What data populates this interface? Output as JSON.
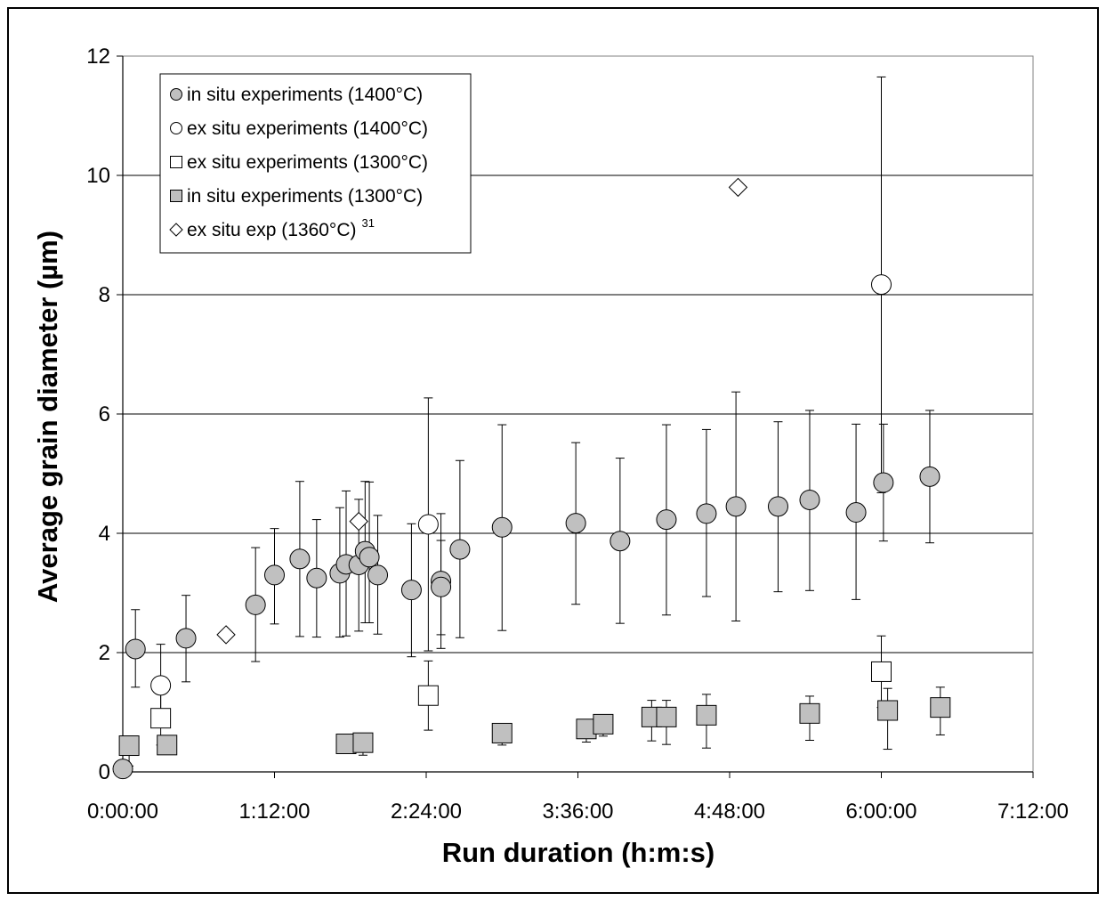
{
  "chart_data": {
    "type": "scatter",
    "xlabel": "Run duration (h:m:s)",
    "ylabel": "Average grain diameter (µm)",
    "x_unit": "minutes",
    "xlim": [
      0,
      432
    ],
    "ylim": [
      0,
      12
    ],
    "x_ticks": [
      {
        "value": 0,
        "label": "0:00:00"
      },
      {
        "value": 72,
        "label": "1:12:00"
      },
      {
        "value": 144,
        "label": "2:24:00"
      },
      {
        "value": 216,
        "label": "3:36:00"
      },
      {
        "value": 288,
        "label": "4:48:00"
      },
      {
        "value": 360,
        "label": "6:00:00"
      },
      {
        "value": 432,
        "label": "7:12:00"
      }
    ],
    "y_ticks": [
      {
        "value": 0,
        "label": "0"
      },
      {
        "value": 2,
        "label": "2"
      },
      {
        "value": 4,
        "label": "4"
      },
      {
        "value": 6,
        "label": "6"
      },
      {
        "value": 8,
        "label": "8"
      },
      {
        "value": 10,
        "label": "10"
      },
      {
        "value": 12,
        "label": "12"
      }
    ],
    "grid": "horizontal major lines",
    "legend_position": "top-left",
    "series": [
      {
        "name": "in situ experiments (1400°C)",
        "marker": "circle",
        "fill": "#c0c0c0",
        "points": [
          {
            "x": 0,
            "y": 0.05
          },
          {
            "x": 6,
            "y": 2.06,
            "err_hi": 2.72,
            "err_lo": 1.42
          },
          {
            "x": 30,
            "y": 2.24,
            "err_hi": 2.96,
            "err_lo": 1.51
          },
          {
            "x": 63,
            "y": 2.8,
            "err_hi": 3.76,
            "err_lo": 1.85
          },
          {
            "x": 72,
            "y": 3.3,
            "err_hi": 4.08,
            "err_lo": 2.48
          },
          {
            "x": 84,
            "y": 3.57,
            "err_hi": 4.87,
            "err_lo": 2.27
          },
          {
            "x": 92,
            "y": 3.25,
            "err_hi": 4.23,
            "err_lo": 2.26
          },
          {
            "x": 103,
            "y": 3.33,
            "err_hi": 4.43,
            "err_lo": 2.26
          },
          {
            "x": 106,
            "y": 3.48,
            "err_hi": 4.71,
            "err_lo": 2.28
          },
          {
            "x": 112,
            "y": 3.47,
            "err_hi": 4.57,
            "err_lo": 2.36
          },
          {
            "x": 115,
            "y": 3.7,
            "err_hi": 4.87,
            "err_lo": 2.5
          },
          {
            "x": 117,
            "y": 3.6,
            "err_hi": 4.86,
            "err_lo": 2.5
          },
          {
            "x": 121,
            "y": 3.3,
            "err_hi": 4.3,
            "err_lo": 2.31
          },
          {
            "x": 137,
            "y": 3.05,
            "err_hi": 4.16,
            "err_lo": 1.93
          },
          {
            "x": 151,
            "y": 3.2,
            "err_hi": 4.33,
            "err_lo": 2.07
          },
          {
            "x": 151,
            "y": 3.1,
            "err_hi": 3.88,
            "err_lo": 2.3
          },
          {
            "x": 160,
            "y": 3.73,
            "err_hi": 5.22,
            "err_lo": 2.25
          },
          {
            "x": 180,
            "y": 4.1,
            "err_hi": 5.82,
            "err_lo": 2.37
          },
          {
            "x": 215,
            "y": 4.17,
            "err_hi": 5.52,
            "err_lo": 2.81
          },
          {
            "x": 236,
            "y": 3.87,
            "err_hi": 5.26,
            "err_lo": 2.49
          },
          {
            "x": 258,
            "y": 4.23,
            "err_hi": 5.82,
            "err_lo": 2.63
          },
          {
            "x": 277,
            "y": 4.33,
            "err_hi": 5.74,
            "err_lo": 2.94
          },
          {
            "x": 291,
            "y": 4.45,
            "err_hi": 6.37,
            "err_lo": 2.53
          },
          {
            "x": 311,
            "y": 4.45,
            "err_hi": 5.87,
            "err_lo": 3.02
          },
          {
            "x": 326,
            "y": 4.56,
            "err_hi": 6.06,
            "err_lo": 3.04
          },
          {
            "x": 348,
            "y": 4.35,
            "err_hi": 5.83,
            "err_lo": 2.89
          },
          {
            "x": 361,
            "y": 4.85,
            "err_hi": 5.83,
            "err_lo": 3.87
          },
          {
            "x": 383,
            "y": 4.95,
            "err_hi": 6.06,
            "err_lo": 3.84
          }
        ]
      },
      {
        "name": "ex situ experiments (1400°C)",
        "marker": "circle",
        "fill": "#ffffff",
        "points": [
          {
            "x": 18,
            "y": 1.45,
            "err_hi": 2.14,
            "err_lo": 0.76
          },
          {
            "x": 145,
            "y": 4.15,
            "err_hi": 6.27,
            "err_lo": 2.03
          },
          {
            "x": 360,
            "y": 8.17,
            "err_hi": 11.65,
            "err_lo": 4.68
          }
        ]
      },
      {
        "name": "ex situ experiments (1300°C)",
        "marker": "square",
        "fill": "#ffffff",
        "points": [
          {
            "x": 18,
            "y": 0.9,
            "err_hi": 1.35,
            "err_lo": 0.45
          },
          {
            "x": 145,
            "y": 1.28,
            "err_hi": 1.86,
            "err_lo": 0.7
          },
          {
            "x": 360,
            "y": 1.68,
            "err_hi": 2.28,
            "err_lo": 1.08
          }
        ]
      },
      {
        "name": "in situ experiments (1300°C)",
        "marker": "square",
        "fill": "#c0c0c0",
        "points": [
          {
            "x": 3,
            "y": 0.44,
            "err_hi": 0.6,
            "err_lo": 0.1
          },
          {
            "x": 21,
            "y": 0.45,
            "err_hi": 0.5,
            "err_lo": 0.3
          },
          {
            "x": 106,
            "y": 0.47,
            "err_hi": 0.55,
            "err_lo": 0.33
          },
          {
            "x": 114,
            "y": 0.49,
            "err_hi": 0.6,
            "err_lo": 0.28
          },
          {
            "x": 180,
            "y": 0.65,
            "err_hi": 0.75,
            "err_lo": 0.45
          },
          {
            "x": 220,
            "y": 0.72,
            "err_hi": 0.85,
            "err_lo": 0.5
          },
          {
            "x": 228,
            "y": 0.8,
            "err_hi": 0.95,
            "err_lo": 0.6
          },
          {
            "x": 251,
            "y": 0.92,
            "err_hi": 1.2,
            "err_lo": 0.52
          },
          {
            "x": 258,
            "y": 0.92,
            "err_hi": 1.2,
            "err_lo": 0.46
          },
          {
            "x": 277,
            "y": 0.95,
            "err_hi": 1.3,
            "err_lo": 0.4
          },
          {
            "x": 326,
            "y": 0.98,
            "err_hi": 1.27,
            "err_lo": 0.53
          },
          {
            "x": 363,
            "y": 1.03,
            "err_hi": 1.4,
            "err_lo": 0.38
          },
          {
            "x": 388,
            "y": 1.08,
            "err_hi": 1.42,
            "err_lo": 0.62
          }
        ]
      },
      {
        "name": "ex situ exp (1360°C)",
        "name_superscript": "31",
        "marker": "diamond",
        "fill": "#ffffff",
        "points": [
          {
            "x": 49,
            "y": 2.3
          },
          {
            "x": 112,
            "y": 4.2
          },
          {
            "x": 292,
            "y": 9.8
          }
        ]
      }
    ]
  }
}
